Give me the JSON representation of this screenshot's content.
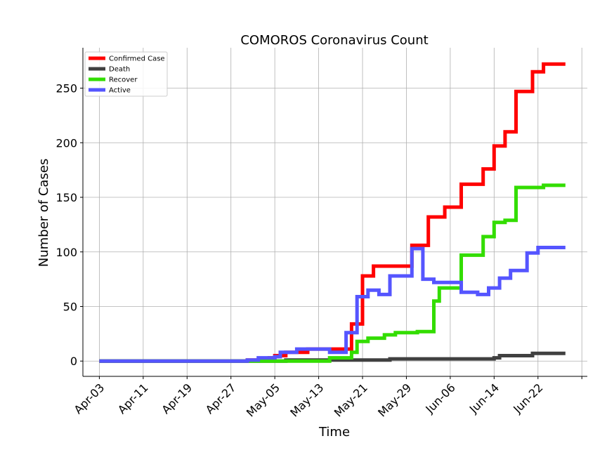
{
  "chart_data": {
    "type": "line",
    "title": "COMOROS Coronavirus Count",
    "xlabel": "Time",
    "ylabel": "Number of Cases",
    "x_start": "2020-04-03",
    "x_end": "2020-06-27",
    "xlim": [
      "2020-03-31",
      "2020-07-01"
    ],
    "ylim": [
      -14,
      287
    ],
    "x_ticks": [
      "Apr-03",
      "Apr-11",
      "Apr-19",
      "Apr-27",
      "May-05",
      "May-13",
      "May-21",
      "May-29",
      "Jun-06",
      "Jun-14",
      "Jun-22"
    ],
    "y_ticks": [
      0,
      50,
      100,
      150,
      200,
      250
    ],
    "grid": true,
    "legend_position": "top-left",
    "series": [
      {
        "name": "Confirmed Case",
        "color": "#ff0000",
        "points": [
          [
            "2020-04-03",
            0
          ],
          [
            "2020-04-30",
            1
          ],
          [
            "2020-05-04",
            3
          ],
          [
            "2020-05-05",
            5
          ],
          [
            "2020-05-07",
            8
          ],
          [
            "2020-05-11",
            11
          ],
          [
            "2020-05-19",
            34
          ],
          [
            "2020-05-21",
            78
          ],
          [
            "2020-05-23",
            87
          ],
          [
            "2020-05-30",
            106
          ],
          [
            "2020-06-02",
            132
          ],
          [
            "2020-06-05",
            141
          ],
          [
            "2020-06-08",
            162
          ],
          [
            "2020-06-12",
            176
          ],
          [
            "2020-06-14",
            197
          ],
          [
            "2020-06-16",
            210
          ],
          [
            "2020-06-18",
            247
          ],
          [
            "2020-06-21",
            265
          ],
          [
            "2020-06-23",
            272
          ],
          [
            "2020-06-27",
            272
          ]
        ]
      },
      {
        "name": "Death",
        "color": "#404040",
        "points": [
          [
            "2020-04-03",
            0
          ],
          [
            "2020-05-07",
            1
          ],
          [
            "2020-05-26",
            2
          ],
          [
            "2020-06-14",
            3
          ],
          [
            "2020-06-15",
            5
          ],
          [
            "2020-06-21",
            7
          ],
          [
            "2020-06-27",
            7
          ]
        ]
      },
      {
        "name": "Recover",
        "color": "#33dd00",
        "points": [
          [
            "2020-04-03",
            0
          ],
          [
            "2020-05-15",
            3
          ],
          [
            "2020-05-19",
            8
          ],
          [
            "2020-05-20",
            18
          ],
          [
            "2020-05-22",
            21
          ],
          [
            "2020-05-25",
            24
          ],
          [
            "2020-05-27",
            26
          ],
          [
            "2020-05-31",
            27
          ],
          [
            "2020-06-03",
            55
          ],
          [
            "2020-06-04",
            67
          ],
          [
            "2020-06-08",
            97
          ],
          [
            "2020-06-12",
            114
          ],
          [
            "2020-06-14",
            127
          ],
          [
            "2020-06-16",
            129
          ],
          [
            "2020-06-18",
            159
          ],
          [
            "2020-06-23",
            161
          ],
          [
            "2020-06-27",
            161
          ]
        ]
      },
      {
        "name": "Active",
        "color": "#5555ff",
        "points": [
          [
            "2020-04-03",
            0
          ],
          [
            "2020-04-30",
            1
          ],
          [
            "2020-05-02",
            3
          ],
          [
            "2020-05-05",
            4
          ],
          [
            "2020-05-06",
            8
          ],
          [
            "2020-05-09",
            11
          ],
          [
            "2020-05-15",
            8
          ],
          [
            "2020-05-18",
            26
          ],
          [
            "2020-05-20",
            59
          ],
          [
            "2020-05-22",
            65
          ],
          [
            "2020-05-24",
            61
          ],
          [
            "2020-05-26",
            78
          ],
          [
            "2020-05-30",
            103
          ],
          [
            "2020-06-01",
            75
          ],
          [
            "2020-06-03",
            72
          ],
          [
            "2020-06-08",
            63
          ],
          [
            "2020-06-11",
            61
          ],
          [
            "2020-06-13",
            67
          ],
          [
            "2020-06-15",
            76
          ],
          [
            "2020-06-17",
            83
          ],
          [
            "2020-06-20",
            99
          ],
          [
            "2020-06-22",
            104
          ],
          [
            "2020-06-27",
            104
          ]
        ]
      }
    ]
  }
}
